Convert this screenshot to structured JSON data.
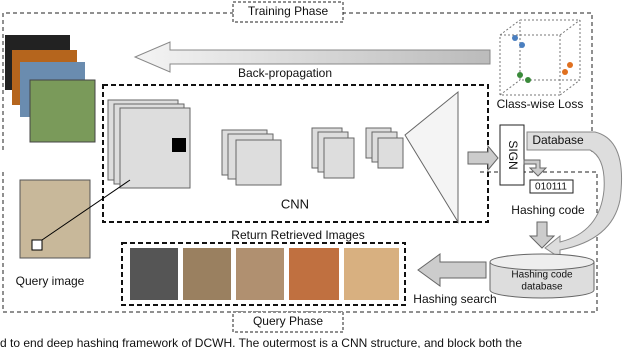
{
  "phases": {
    "training": "Training Phase",
    "query": "Query Phase"
  },
  "training": {
    "backprop": "Back-propagation",
    "loss": "Class-wise Loss"
  },
  "network": {
    "cnn": "CNN",
    "sign": "SIGN"
  },
  "hashing": {
    "database": "Database",
    "code": "010111",
    "code_label": "Hashing code",
    "db_line1": "Hashing code",
    "db_line2": "database",
    "search": "Hashing search"
  },
  "query": {
    "image_label": "Query image",
    "retrieved": "Return Retrieved Images"
  },
  "caption": "d to end deep hashing framework of DCWH. The outermost is a CNN structure, and block both the"
}
